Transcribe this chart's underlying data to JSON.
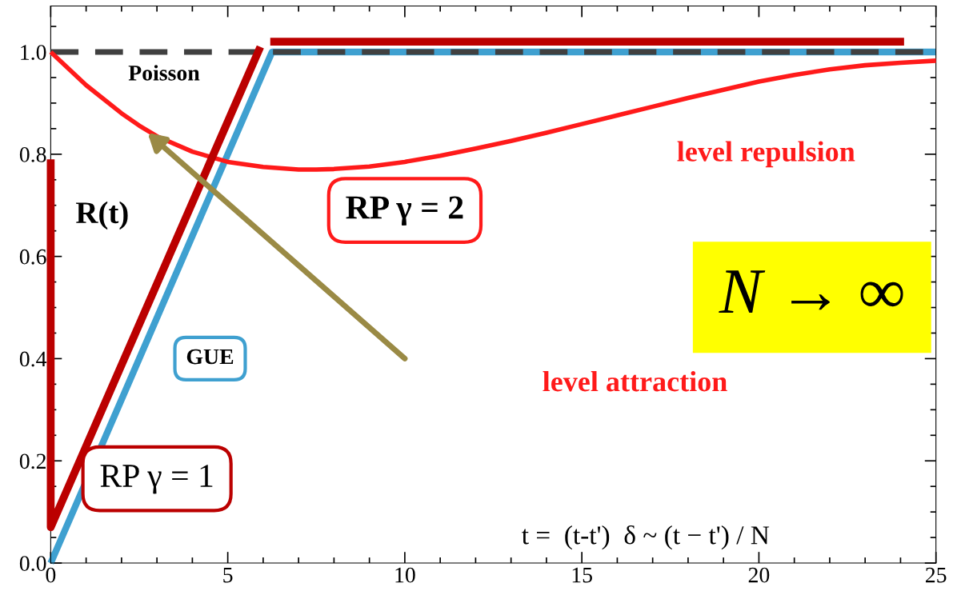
{
  "chart_data": {
    "type": "line",
    "ylabel": "R(t)",
    "xlim": [
      0,
      25
    ],
    "ylim": [
      0,
      1.09
    ],
    "xticks": [
      0,
      5,
      10,
      15,
      20,
      25
    ],
    "yticks": [
      {
        "value": 0,
        "label": "0.0"
      },
      {
        "value": 0.2,
        "label": "0.2"
      },
      {
        "value": 0.4,
        "label": "0.4"
      },
      {
        "value": 0.6,
        "label": "0.6"
      },
      {
        "value": 0.8,
        "label": "0.8"
      },
      {
        "value": 1,
        "label": "1.0"
      }
    ],
    "grid": false,
    "legend": false,
    "series": [
      {
        "name": "Poisson",
        "color": "#404040",
        "line_style": "dashed",
        "x": [
          0,
          25
        ],
        "values": [
          1.0,
          1.0
        ]
      },
      {
        "name": "GUE",
        "color": "#3fa0d0",
        "line_style": "solid",
        "x": [
          0,
          6.25,
          25
        ],
        "values": [
          0,
          1.0,
          1.0
        ]
      },
      {
        "name": "RP γ = 2",
        "color": "#ff1a1a",
        "line_style": "solid",
        "x": [
          0,
          1,
          2,
          2.5,
          3,
          4,
          5,
          6,
          7,
          7.5,
          8,
          9,
          10,
          11,
          12,
          13,
          14,
          15,
          16,
          17,
          18,
          19,
          20,
          21,
          22,
          23,
          24,
          25
        ],
        "values": [
          1.0,
          0.935,
          0.88,
          0.856,
          0.835,
          0.805,
          0.785,
          0.775,
          0.77,
          0.77,
          0.771,
          0.776,
          0.785,
          0.797,
          0.811,
          0.826,
          0.842,
          0.859,
          0.876,
          0.893,
          0.91,
          0.926,
          0.942,
          0.955,
          0.966,
          0.974,
          0.979,
          0.983
        ]
      },
      {
        "name": "RP γ = 1",
        "color": "#bb0000",
        "line_style": "solid",
        "x": [
          0,
          0,
          5.92
        ],
        "values": [
          0.79,
          0.07,
          1.01
        ]
      },
      {
        "color": "#bb0000",
        "line_style": "solid",
        "x": [
          6.2,
          24.1
        ],
        "values": [
          1.02,
          1.02
        ]
      }
    ],
    "annotations": [
      "level repulsion",
      "level attraction",
      "t =  (t-t')  δ ~ (t − t') / N",
      "N → ∞"
    ]
  }
}
